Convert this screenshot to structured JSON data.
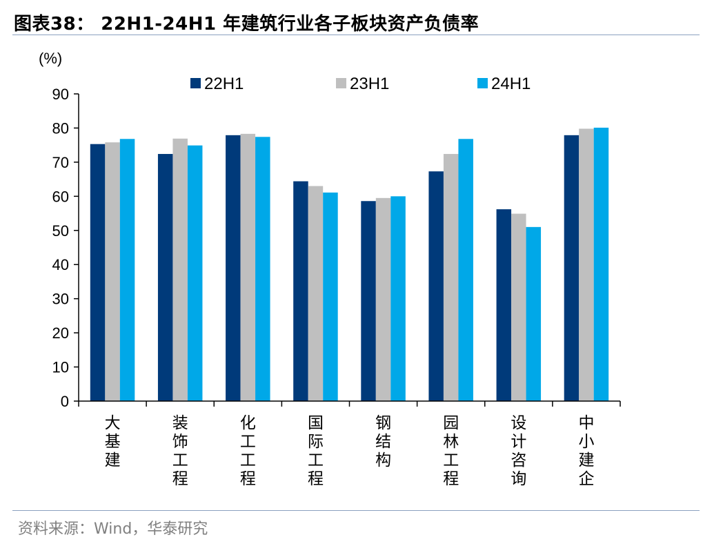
{
  "figure": {
    "title": "图表38：  22H1-24H1 年建筑行业各子板块资产负债率",
    "source": "资料来源：Wind，华泰研究"
  },
  "chart_data": {
    "type": "bar",
    "title": "",
    "ylabel": "(%)",
    "xlabel": "",
    "ylim": [
      0,
      90
    ],
    "yticks": [
      0,
      10,
      20,
      30,
      40,
      50,
      60,
      70,
      80,
      90
    ],
    "legend_position": "top",
    "grid": false,
    "categories": [
      "大基建",
      "装饰工程",
      "化工工程",
      "国际工程",
      "钢结构",
      "园林工程",
      "设计咨询",
      "中小建企"
    ],
    "series": [
      {
        "name": "22H1",
        "color": "#003a7a",
        "values": [
          75.3,
          72.4,
          77.9,
          64.4,
          58.6,
          67.3,
          56.2,
          77.9
        ]
      },
      {
        "name": "23H1",
        "color": "#bfbfbf",
        "values": [
          75.8,
          76.9,
          78.3,
          63.0,
          59.5,
          72.4,
          54.9,
          79.8
        ]
      },
      {
        "name": "24H1",
        "color": "#00a8e8",
        "values": [
          76.8,
          74.9,
          77.4,
          61.1,
          60.0,
          76.8,
          51.0,
          80.1
        ]
      }
    ]
  }
}
